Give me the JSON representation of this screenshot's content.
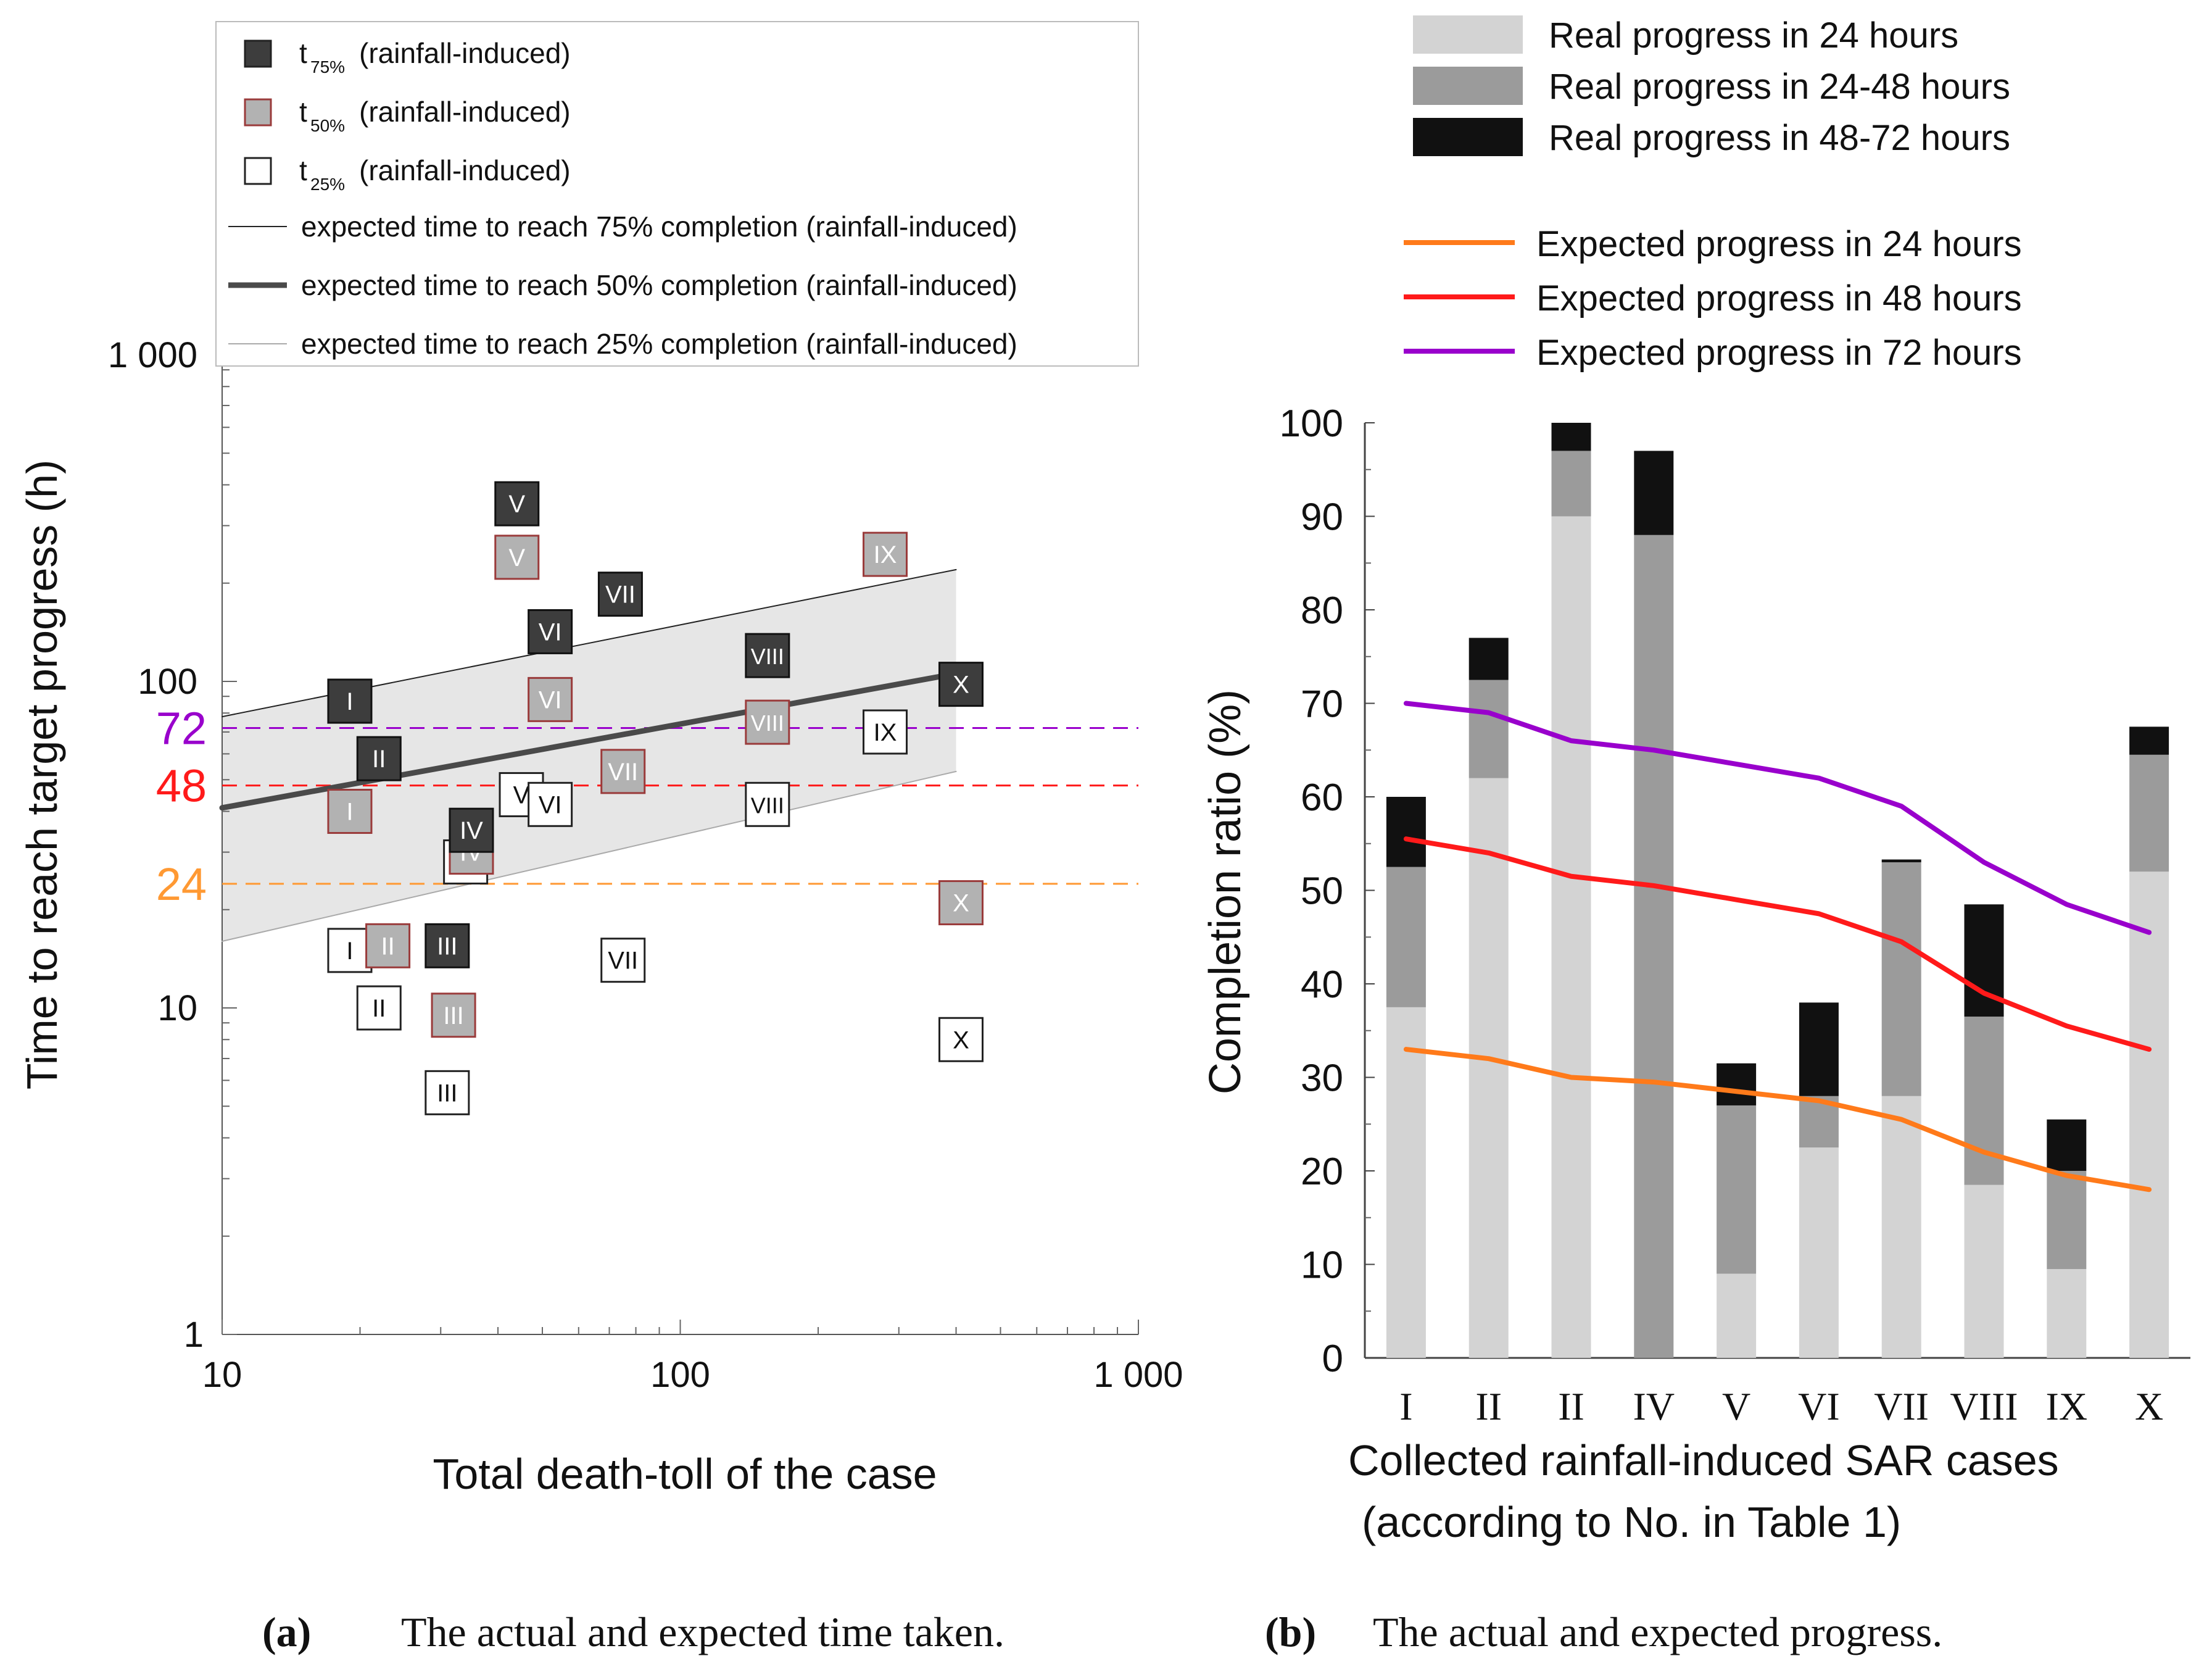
{
  "colors": {
    "t75": "#3d3d3d",
    "t50": "#b2b2b2",
    "t50_edge": "#9a3b3b",
    "t25": "#ffffff",
    "band": "#e6e6e6",
    "h72": "#9900cc",
    "h48": "#ff1a1a",
    "h24": "#ff9933",
    "bar24": "#d3d3d3",
    "bar24_48": "#9b9b9b",
    "bar48_72": "#111111",
    "exp24": "#ff7a1a",
    "exp48": "#ff1a1a",
    "exp72": "#9900cc"
  },
  "chart_data": [
    {
      "type": "scatter",
      "panel": "(a)",
      "caption": "The actual and expected time taken.",
      "xlabel": "Total death-toll of the case",
      "ylabel": "Time to reach target progress (h)",
      "xscale": "log",
      "yscale": "log",
      "xlim": [
        10,
        1000
      ],
      "ylim": [
        1,
        1000
      ],
      "xticks": [
        10,
        100,
        1000
      ],
      "xtick_labels": [
        "10",
        "100",
        "1 000"
      ],
      "yticks": [
        1,
        10,
        100,
        1000
      ],
      "ytick_labels": [
        "1",
        "10",
        "100",
        "1 000"
      ],
      "legend": {
        "placement": "top",
        "entries": [
          {
            "key": "t75",
            "base": "t",
            "sub": "75%",
            "text": "(rainfall-induced)",
            "kind": "square",
            "color": "#3d3d3d"
          },
          {
            "key": "t50",
            "base": "t",
            "sub": "50%",
            "text": "(rainfall-induced)",
            "kind": "square",
            "color": "#b2b2b2"
          },
          {
            "key": "t25",
            "base": "t",
            "sub": "25%",
            "text": "(rainfall-induced)",
            "kind": "square",
            "color": "#ffffff"
          },
          {
            "key": "l75",
            "text": "expected time to reach 75% completion (rainfall-induced)",
            "kind": "line",
            "width": 2,
            "color": "#222222"
          },
          {
            "key": "l50",
            "text": "expected time to reach 50% completion (rainfall-induced)",
            "kind": "line",
            "width": 9,
            "color": "#4a4a4a"
          },
          {
            "key": "l25",
            "text": "expected time to reach 25% completion (rainfall-induced)",
            "kind": "line",
            "width": 2,
            "color": "#aaaaaa"
          }
        ]
      },
      "reference_lines": [
        {
          "label": "72",
          "y": 72,
          "color": "#9900cc"
        },
        {
          "label": "48",
          "y": 48,
          "color": "#ff1a1a"
        },
        {
          "label": "24",
          "y": 24,
          "color": "#ff9933"
        }
      ],
      "expected_lines": [
        {
          "name": "75% completion",
          "x": [
            10,
            400
          ],
          "y": [
            78,
            220
          ]
        },
        {
          "name": "50% completion",
          "x": [
            10,
            420
          ],
          "y": [
            41,
            107
          ]
        },
        {
          "name": "25% completion",
          "x": [
            10,
            400
          ],
          "y": [
            16,
            53
          ]
        }
      ],
      "series": [
        {
          "name": "t75% (rainfall-induced)",
          "style": "t75",
          "points": [
            {
              "label": "I",
              "x": 19,
              "y": 87
            },
            {
              "label": "II",
              "x": 22,
              "y": 58
            },
            {
              "label": "III",
              "x": 31,
              "y": 15.5
            },
            {
              "label": "IV",
              "x": 35,
              "y": 35
            },
            {
              "label": "V",
              "x": 44,
              "y": 350
            },
            {
              "label": "VI",
              "x": 52,
              "y": 142
            },
            {
              "label": "VII",
              "x": 74,
              "y": 185
            },
            {
              "label": "VIII",
              "x": 155,
              "y": 120
            },
            {
              "label": "X",
              "x": 410,
              "y": 98
            }
          ]
        },
        {
          "name": "t50% (rainfall-induced)",
          "style": "t50",
          "points": [
            {
              "label": "I",
              "x": 19,
              "y": 40
            },
            {
              "label": "II",
              "x": 23,
              "y": 15.5
            },
            {
              "label": "III",
              "x": 32,
              "y": 9.5
            },
            {
              "label": "IV",
              "x": 35,
              "y": 30
            },
            {
              "label": "V",
              "x": 44,
              "y": 240
            },
            {
              "label": "VI",
              "x": 52,
              "y": 88
            },
            {
              "label": "VII",
              "x": 75,
              "y": 53
            },
            {
              "label": "VIII",
              "x": 155,
              "y": 75
            },
            {
              "label": "IX",
              "x": 280,
              "y": 245
            },
            {
              "label": "X",
              "x": 410,
              "y": 21
            }
          ]
        },
        {
          "name": "t25% (rainfall-induced)",
          "style": "t25",
          "points": [
            {
              "label": "I",
              "x": 19,
              "y": 15
            },
            {
              "label": "II",
              "x": 22,
              "y": 10
            },
            {
              "label": "III",
              "x": 31,
              "y": 5.5
            },
            {
              "label": "IV",
              "x": 34,
              "y": 28
            },
            {
              "label": "V",
              "x": 45,
              "y": 45
            },
            {
              "label": "VI",
              "x": 52,
              "y": 42
            },
            {
              "label": "VII",
              "x": 75,
              "y": 14
            },
            {
              "label": "VIII",
              "x": 155,
              "y": 42
            },
            {
              "label": "IX",
              "x": 280,
              "y": 70
            },
            {
              "label": "X",
              "x": 410,
              "y": 8
            }
          ]
        }
      ]
    },
    {
      "type": "bar",
      "stacked": true,
      "panel": "(b)",
      "caption": "The actual and expected progress.",
      "xlabel": "Collected rainfall-induced SAR cases",
      "xlabel2": "(according to No. in Table 1)",
      "ylabel": "Completion ratio (%)",
      "ylim": [
        0,
        100
      ],
      "yticks": [
        0,
        10,
        20,
        30,
        40,
        50,
        60,
        70,
        80,
        90,
        100
      ],
      "categories": [
        "I",
        "II",
        "II",
        "IV",
        "V",
        "VI",
        "VII",
        "VIII",
        "IX",
        "X"
      ],
      "series": [
        {
          "name": "Real progress in 24 hours",
          "color": "#d3d3d3",
          "values": [
            37.5,
            62,
            90,
            0,
            9,
            22.5,
            28,
            18.5,
            9.5,
            52
          ]
        },
        {
          "name": "Real progress in 24-48 hours",
          "color": "#9b9b9b",
          "values": [
            15,
            10.5,
            7,
            88,
            18,
            5.5,
            25,
            18,
            10.5,
            12.5
          ]
        },
        {
          "name": "Real progress in 48-72 hours",
          "color": "#111111",
          "values": [
            7.5,
            4.5,
            3,
            9,
            4.5,
            10,
            0.3,
            12,
            5.5,
            3
          ]
        }
      ],
      "lines": [
        {
          "name": "Expected progress in 24 hours",
          "color": "#ff7a1a",
          "values": [
            33,
            32,
            30,
            29.5,
            28.5,
            27.5,
            25.5,
            22,
            19.5,
            18
          ]
        },
        {
          "name": "Expected progress in 48 hours",
          "color": "#ff1a1a",
          "values": [
            55.5,
            54,
            51.5,
            50.5,
            49,
            47.5,
            44.5,
            39,
            35.5,
            33
          ]
        },
        {
          "name": "Expected progress in 72 hours",
          "color": "#9900cc",
          "values": [
            70,
            69,
            66,
            65,
            63.5,
            62,
            59,
            53,
            48.5,
            45.5
          ]
        }
      ]
    }
  ]
}
